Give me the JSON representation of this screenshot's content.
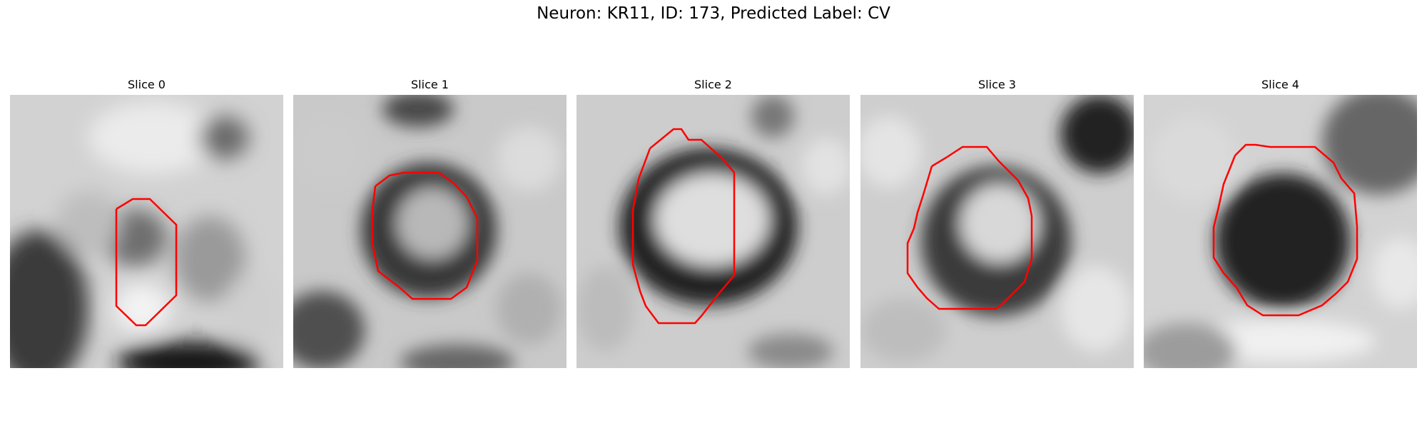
{
  "figure": {
    "title": "Neuron: KR11, ID: 173, Predicted Label: CV"
  },
  "panels": [
    {
      "label": "Slice 0"
    },
    {
      "label": "Slice 1"
    },
    {
      "label": "Slice 2"
    },
    {
      "label": "Slice 3"
    },
    {
      "label": "Slice 4"
    }
  ],
  "colors": {
    "contour": "#ff0000",
    "background": "#ffffff"
  }
}
